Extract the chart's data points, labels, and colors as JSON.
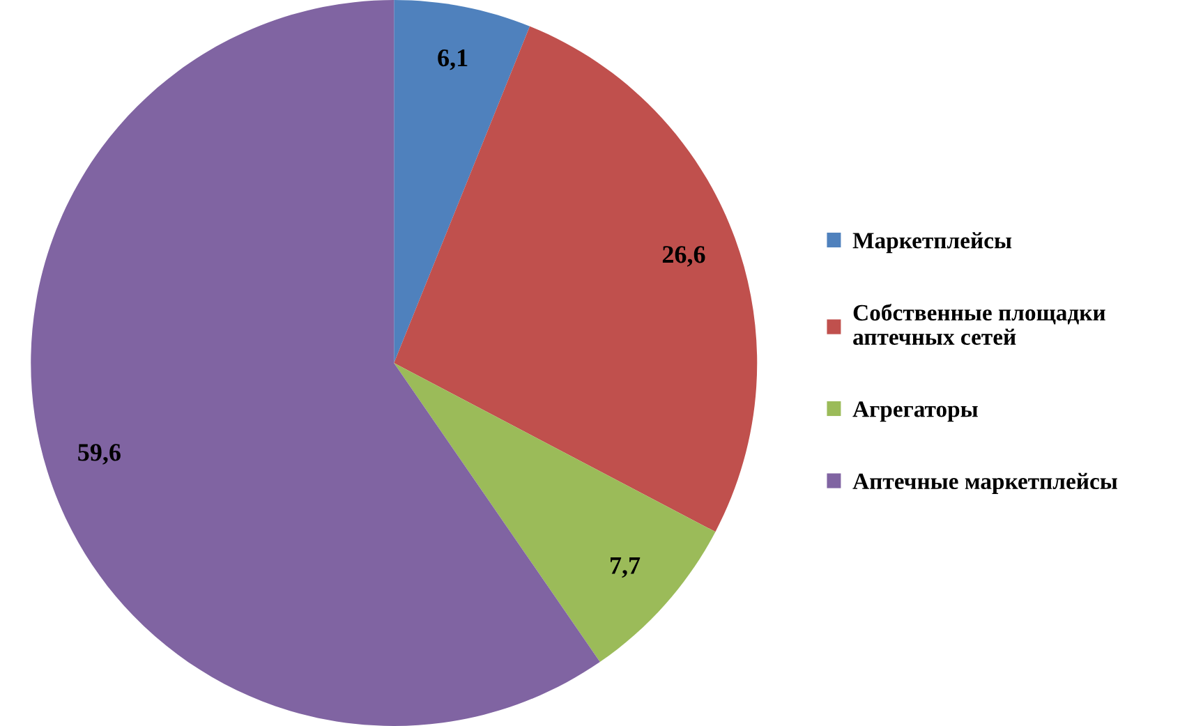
{
  "chart_data": {
    "type": "pie",
    "categories": [
      "Маркетплейсы",
      "Собственные площадки аптечных сетей",
      "Агрегаторы",
      "Аптечные маркетплейсы"
    ],
    "values": [
      6.1,
      26.6,
      7.7,
      59.6
    ],
    "value_labels": [
      "6,1",
      "26,6",
      "7,7",
      "59,6"
    ],
    "colors": [
      "#4f81bd",
      "#c0504d",
      "#9bbb59",
      "#8064a2"
    ],
    "legend": "right"
  }
}
